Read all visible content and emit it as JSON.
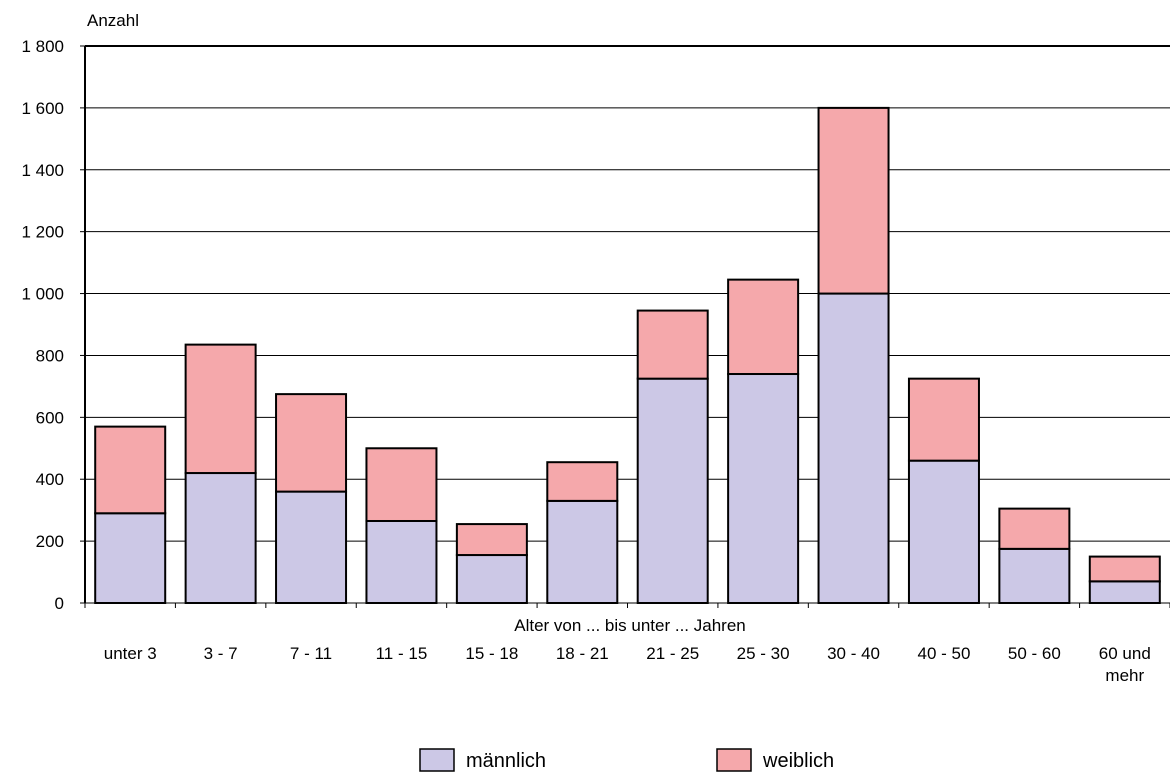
{
  "chart_data": {
    "type": "bar",
    "stacked": true,
    "ylabel": "Anzahl",
    "xlabel": "Alter von ... bis unter ... Jahren",
    "ylim": [
      0,
      1800
    ],
    "ytick_step": 200,
    "ytick_labels": [
      "0",
      "200",
      "400",
      "600",
      "800",
      "1 000",
      "1 200",
      "1 400",
      "1 600",
      "1 800"
    ],
    "grid": true,
    "legend_position": "bottom",
    "categories": [
      "unter 3",
      "3 - 7",
      "7 - 11",
      "11 - 15",
      "15 - 18",
      "18 - 21",
      "21 - 25",
      "25 - 30",
      "30 - 40",
      "40 - 50",
      "50 - 60",
      "60 und mehr"
    ],
    "category_label_lines": [
      [
        "unter 3"
      ],
      [
        "3 - 7"
      ],
      [
        "7 - 11"
      ],
      [
        "11 - 15"
      ],
      [
        "15 - 18"
      ],
      [
        "18 - 21"
      ],
      [
        "21 - 25"
      ],
      [
        "25 - 30"
      ],
      [
        "30 - 40"
      ],
      [
        "40 - 50"
      ],
      [
        "50 - 60"
      ],
      [
        "60 und",
        "mehr"
      ]
    ],
    "series": [
      {
        "name": "männlich",
        "color": "#ccc8e6",
        "values": [
          290,
          420,
          360,
          265,
          155,
          330,
          725,
          740,
          1000,
          460,
          175,
          70
        ]
      },
      {
        "name": "weiblich",
        "color": "#f5a8ab",
        "values": [
          280,
          415,
          315,
          235,
          100,
          125,
          220,
          305,
          600,
          265,
          130,
          80
        ]
      }
    ]
  }
}
